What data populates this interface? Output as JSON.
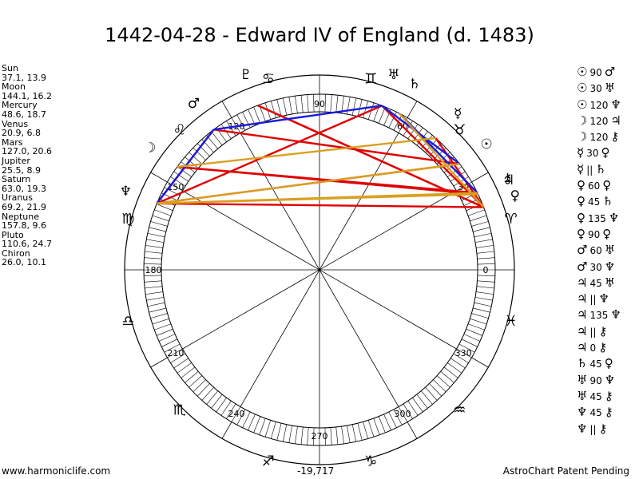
{
  "title": "1442-04-28 - Edward IV of England (d. 1483)",
  "planets": [
    {
      "name": "Sun",
      "value": "37.1, 13.9"
    },
    {
      "name": "Moon",
      "value": "144.1, 16.2"
    },
    {
      "name": "Mercury",
      "value": "48.6, 18.7"
    },
    {
      "name": "Venus",
      "value": "20.9, 6.8"
    },
    {
      "name": "Mars",
      "value": "127.0, 20.6"
    },
    {
      "name": "Jupiter",
      "value": "25.5, 8.9"
    },
    {
      "name": "Saturn",
      "value": "63.0, 19.3"
    },
    {
      "name": "Uranus",
      "value": "69.2, 21.9"
    },
    {
      "name": "Neptune",
      "value": "157.8, 9.6"
    },
    {
      "name": "Pluto",
      "value": "110.6, 24.7"
    },
    {
      "name": "Chiron",
      "value": "26.0, 10.1"
    }
  ],
  "aspects": [
    {
      "a": "☉",
      "angle": "90",
      "b": "♂"
    },
    {
      "a": "☉",
      "angle": "30",
      "b": "♅"
    },
    {
      "a": "☉",
      "angle": "120",
      "b": "♆"
    },
    {
      "a": "☽",
      "angle": "120",
      "b": "♃"
    },
    {
      "a": "☽",
      "angle": "120",
      "b": "⚷"
    },
    {
      "a": "☿",
      "angle": "30",
      "b": "♀"
    },
    {
      "a": "☿",
      "angle": "||",
      "b": "♄"
    },
    {
      "a": "♀",
      "angle": "60",
      "b": "♀"
    },
    {
      "a": "♀",
      "angle": "45",
      "b": "♄"
    },
    {
      "a": "♀",
      "angle": "135",
      "b": "♆"
    },
    {
      "a": "♀",
      "angle": "90",
      "b": "♀"
    },
    {
      "a": "♂",
      "angle": "60",
      "b": "♅"
    },
    {
      "a": "♂",
      "angle": "30",
      "b": "♆"
    },
    {
      "a": "♃",
      "angle": "45",
      "b": "♅"
    },
    {
      "a": "♃",
      "angle": "||",
      "b": "♆"
    },
    {
      "a": "♃",
      "angle": "135",
      "b": "♆"
    },
    {
      "a": "♃",
      "angle": "||",
      "b": "⚷"
    },
    {
      "a": "♃",
      "angle": "0",
      "b": "⚷"
    },
    {
      "a": "♄",
      "angle": "45",
      "b": "♀"
    },
    {
      "a": "♅",
      "angle": "90",
      "b": "♆"
    },
    {
      "a": "♅",
      "angle": "45",
      "b": "⚷"
    },
    {
      "a": "♆",
      "angle": "45",
      "b": "⚷"
    },
    {
      "a": "♆",
      "angle": "||",
      "b": "⚷"
    }
  ],
  "wheel": {
    "degree_labels": [
      "0",
      "30",
      "60",
      "90",
      "120",
      "150",
      "180",
      "210",
      "240",
      "270",
      "300",
      "330"
    ],
    "signs": [
      {
        "name": "aries-icon",
        "glyph": "♈",
        "lon": 15
      },
      {
        "name": "taurus-icon",
        "glyph": "♉",
        "lon": 45
      },
      {
        "name": "gemini-icon",
        "glyph": "♊",
        "lon": 75
      },
      {
        "name": "cancer-icon",
        "glyph": "♋",
        "lon": 105
      },
      {
        "name": "leo-icon",
        "glyph": "♌",
        "lon": 135
      },
      {
        "name": "virgo-icon",
        "glyph": "♍",
        "lon": 165
      },
      {
        "name": "libra-icon",
        "glyph": "♎",
        "lon": 195
      },
      {
        "name": "scorpio-icon",
        "glyph": "♏",
        "lon": 225
      },
      {
        "name": "sagittarius-icon",
        "glyph": "♐",
        "lon": 255
      },
      {
        "name": "capricorn-icon",
        "glyph": "♑",
        "lon": 285
      },
      {
        "name": "aquarius-icon",
        "glyph": "♒",
        "lon": 315
      },
      {
        "name": "pisces-icon",
        "glyph": "♓",
        "lon": 345
      }
    ],
    "planet_glyphs": [
      {
        "name": "sun-glyph-icon",
        "glyph": "☉",
        "lon": 37.1
      },
      {
        "name": "moon-glyph-icon",
        "glyph": "☽",
        "lon": 144.1
      },
      {
        "name": "mercury-glyph-icon",
        "glyph": "☿",
        "lon": 48.6
      },
      {
        "name": "venus-glyph-icon",
        "glyph": "♀",
        "lon": 20.9
      },
      {
        "name": "mars-glyph-icon",
        "glyph": "♂",
        "lon": 127.0
      },
      {
        "name": "jupiter-glyph-icon",
        "glyph": "♃",
        "lon": 25.5
      },
      {
        "name": "saturn-glyph-icon",
        "glyph": "♄",
        "lon": 63.0
      },
      {
        "name": "uranus-glyph-icon",
        "glyph": "♅",
        "lon": 69.2
      },
      {
        "name": "neptune-glyph-icon",
        "glyph": "♆",
        "lon": 157.8
      },
      {
        "name": "pluto-glyph-icon",
        "glyph": "♇",
        "lon": 110.6
      },
      {
        "name": "chiron-glyph-icon",
        "glyph": "⚷",
        "lon": 26.0
      }
    ],
    "aspect_lines": [
      {
        "from": 37.1,
        "to": 127.0,
        "color": "#e00000"
      },
      {
        "from": 37.1,
        "to": 157.8,
        "color": "#e00000"
      },
      {
        "from": 25.5,
        "to": 144.1,
        "color": "#e00000"
      },
      {
        "from": 26.0,
        "to": 144.1,
        "color": "#e00000"
      },
      {
        "from": 20.9,
        "to": 110.6,
        "color": "#e00000"
      },
      {
        "from": 69.2,
        "to": 157.8,
        "color": "#e00000"
      },
      {
        "from": 69.2,
        "to": 20.9,
        "color": "#e00000"
      },
      {
        "from": 110.6,
        "to": 20.9,
        "color": "#e00000"
      },
      {
        "from": 20.9,
        "to": 157.8,
        "color": "#e00000"
      },
      {
        "from": 48.6,
        "to": 20.9,
        "color": "#e00000"
      },
      {
        "from": 127.0,
        "to": 157.8,
        "color": "#e00000"
      },
      {
        "from": 37.1,
        "to": 69.2,
        "color": "#1a1ae0"
      },
      {
        "from": 127.0,
        "to": 69.2,
        "color": "#1a1ae0"
      },
      {
        "from": 127.0,
        "to": 157.8,
        "color": "#1a1ae0"
      },
      {
        "from": 63.0,
        "to": 26.0,
        "color": "#1a1ae0"
      },
      {
        "from": 20.9,
        "to": 63.0,
        "color": "#d9a020"
      },
      {
        "from": 25.5,
        "to": 157.8,
        "color": "#d9a020"
      },
      {
        "from": 26.0,
        "to": 157.8,
        "color": "#d9a020"
      },
      {
        "from": 37.1,
        "to": 157.8,
        "color": "#d9a020"
      },
      {
        "from": 48.6,
        "to": 144.1,
        "color": "#d9a020"
      }
    ]
  },
  "footer": {
    "left": "www.harmoniclife.com",
    "center": "-19,717",
    "right": "AstroChart Patent Pending"
  }
}
